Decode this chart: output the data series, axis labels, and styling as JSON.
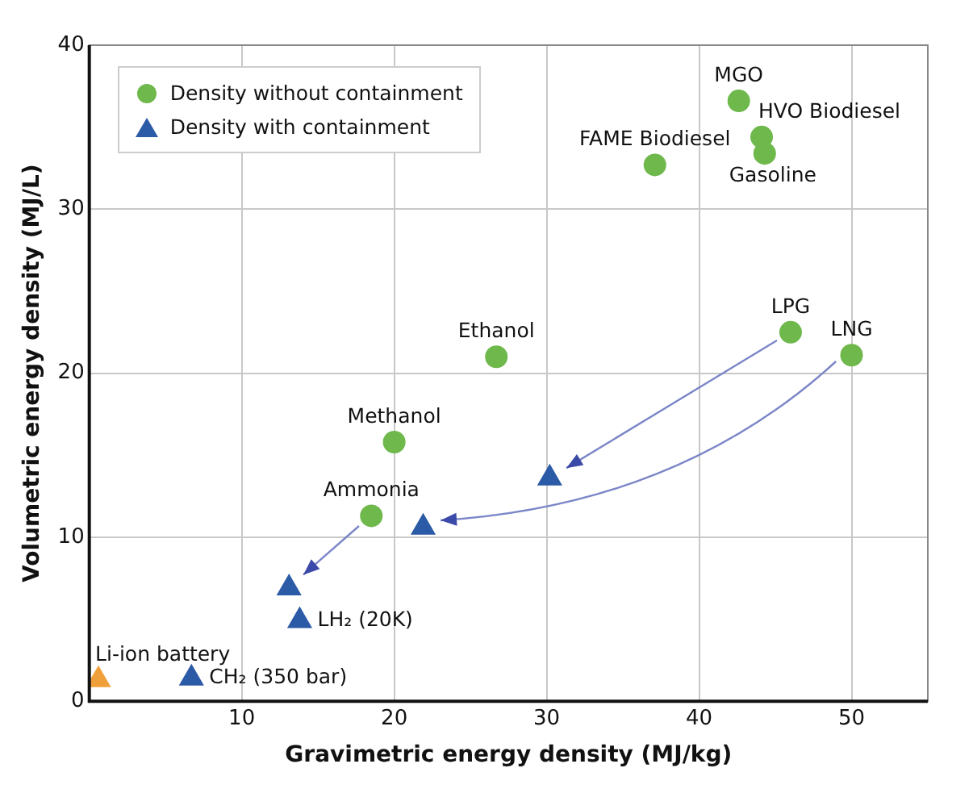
{
  "chart_data": {
    "type": "scatter",
    "xlabel": "Gravimetric energy density (MJ/kg)",
    "ylabel": "Volumetric energy density (MJ/L)",
    "xlim": [
      0,
      55
    ],
    "xticks": [
      10,
      20,
      30,
      40,
      50
    ],
    "ylim": [
      0,
      40
    ],
    "yticks": [
      0,
      10,
      20,
      30,
      40
    ],
    "grid": true,
    "legend": "top left",
    "series": [
      {
        "name": "Density without containment",
        "color": "#6fb84c",
        "marker": "circle",
        "x": [
          42.6,
          44.1,
          44.3,
          37.1,
          46.0,
          50.0,
          26.7,
          20.0,
          18.5
        ],
        "values": [
          36.6,
          34.4,
          33.4,
          32.7,
          22.5,
          21.1,
          21.0,
          15.8,
          11.3
        ]
      },
      {
        "name": "Density with containment",
        "color": "#2b5aa6",
        "marker": "triangle",
        "x": [
          30.2,
          21.9,
          13.1,
          13.8,
          6.7
        ],
        "values": [
          13.6,
          10.6,
          6.9,
          4.9,
          1.4
        ]
      },
      {
        "color": "#f0a03a",
        "marker": "triangle",
        "x": [
          0.6
        ],
        "values": [
          1.3
        ]
      }
    ],
    "annotations": [
      {
        "text": "MGO",
        "x": 42.6,
        "y": 36.6
      },
      {
        "text": "HVO Biodiesel",
        "x": 44.1,
        "y": 34.4
      },
      {
        "text": "Gasoline",
        "x": 44.3,
        "y": 33.4
      },
      {
        "text": "FAME Biodiesel",
        "x": 37.1,
        "y": 32.7
      },
      {
        "text": "LPG",
        "x": 46.0,
        "y": 22.5
      },
      {
        "text": "LNG",
        "x": 50.0,
        "y": 21.1
      },
      {
        "text": "Ethanol",
        "x": 26.7,
        "y": 21.0
      },
      {
        "text": "Methanol",
        "x": 20.0,
        "y": 15.8
      },
      {
        "text": "Ammonia",
        "x": 18.5,
        "y": 11.3
      },
      {
        "text": "LH₂ (20K)",
        "x": 13.8,
        "y": 4.9
      },
      {
        "text": "CH₂ (350 bar)",
        "x": 6.7,
        "y": 1.4
      },
      {
        "text": "Li-ion battery",
        "x": 0.6,
        "y": 1.3
      }
    ]
  }
}
